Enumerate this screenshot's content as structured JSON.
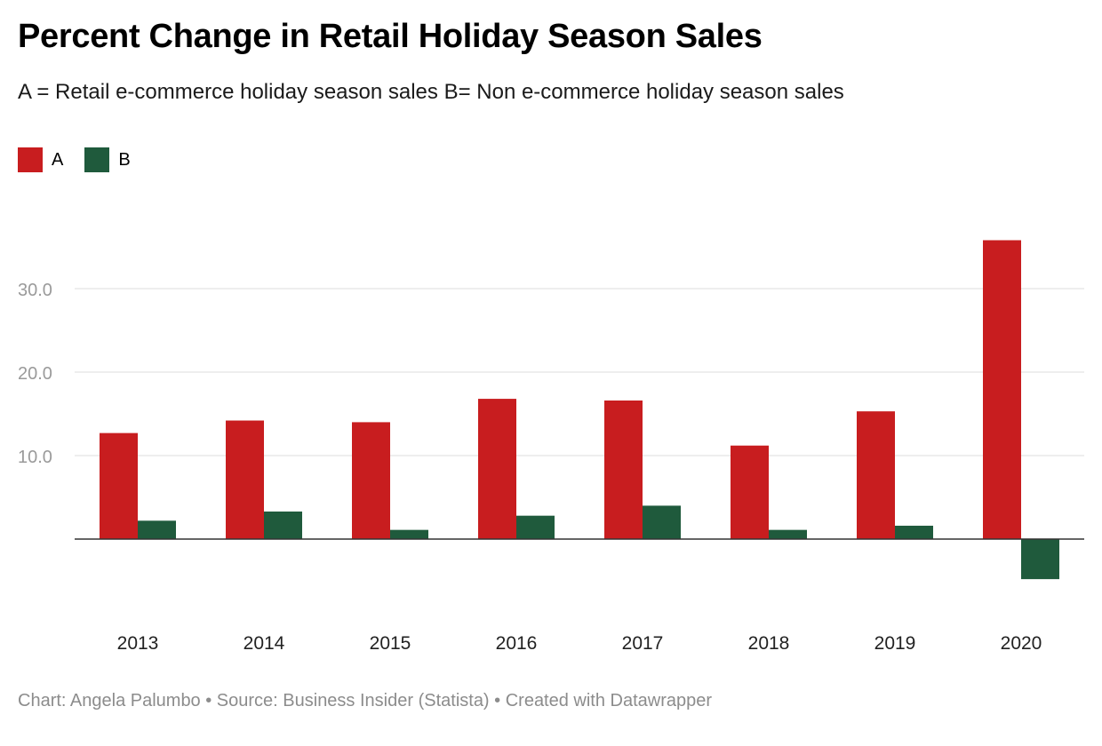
{
  "header": {
    "title": "Percent Change in Retail Holiday Season Sales",
    "subtitle": "A = Retail e-commerce holiday season sales B= Non e-commerce holiday season sales"
  },
  "legend": {
    "items": [
      {
        "label": "A",
        "color": "#c81d1f"
      },
      {
        "label": "B",
        "color": "#1f5a3c"
      }
    ]
  },
  "footer": {
    "credit": "Chart: Angela Palumbo • Source: Business Insider (Statista) • Created with Datawrapper"
  },
  "chart_data": {
    "type": "bar",
    "title": "Percent Change in Retail Holiday Season Sales",
    "subtitle": "A = Retail e-commerce holiday season sales B= Non e-commerce holiday season sales",
    "categories": [
      "2013",
      "2014",
      "2015",
      "2016",
      "2017",
      "2018",
      "2019",
      "2020"
    ],
    "series": [
      {
        "name": "A",
        "color": "#c81d1f",
        "values": [
          12.7,
          14.2,
          14.0,
          16.8,
          16.6,
          11.2,
          15.3,
          35.8
        ]
      },
      {
        "name": "B",
        "color": "#1f5a3c",
        "values": [
          2.2,
          3.3,
          1.1,
          2.8,
          4.0,
          1.1,
          1.6,
          -4.8
        ]
      }
    ],
    "yticks": [
      10,
      20,
      30
    ],
    "ytick_labels": [
      "10.0",
      "20.0",
      "30.0"
    ],
    "ylim": [
      -8.5,
      39
    ],
    "grid": true,
    "legend_position": "top-left",
    "xlabel": "",
    "ylabel": ""
  }
}
